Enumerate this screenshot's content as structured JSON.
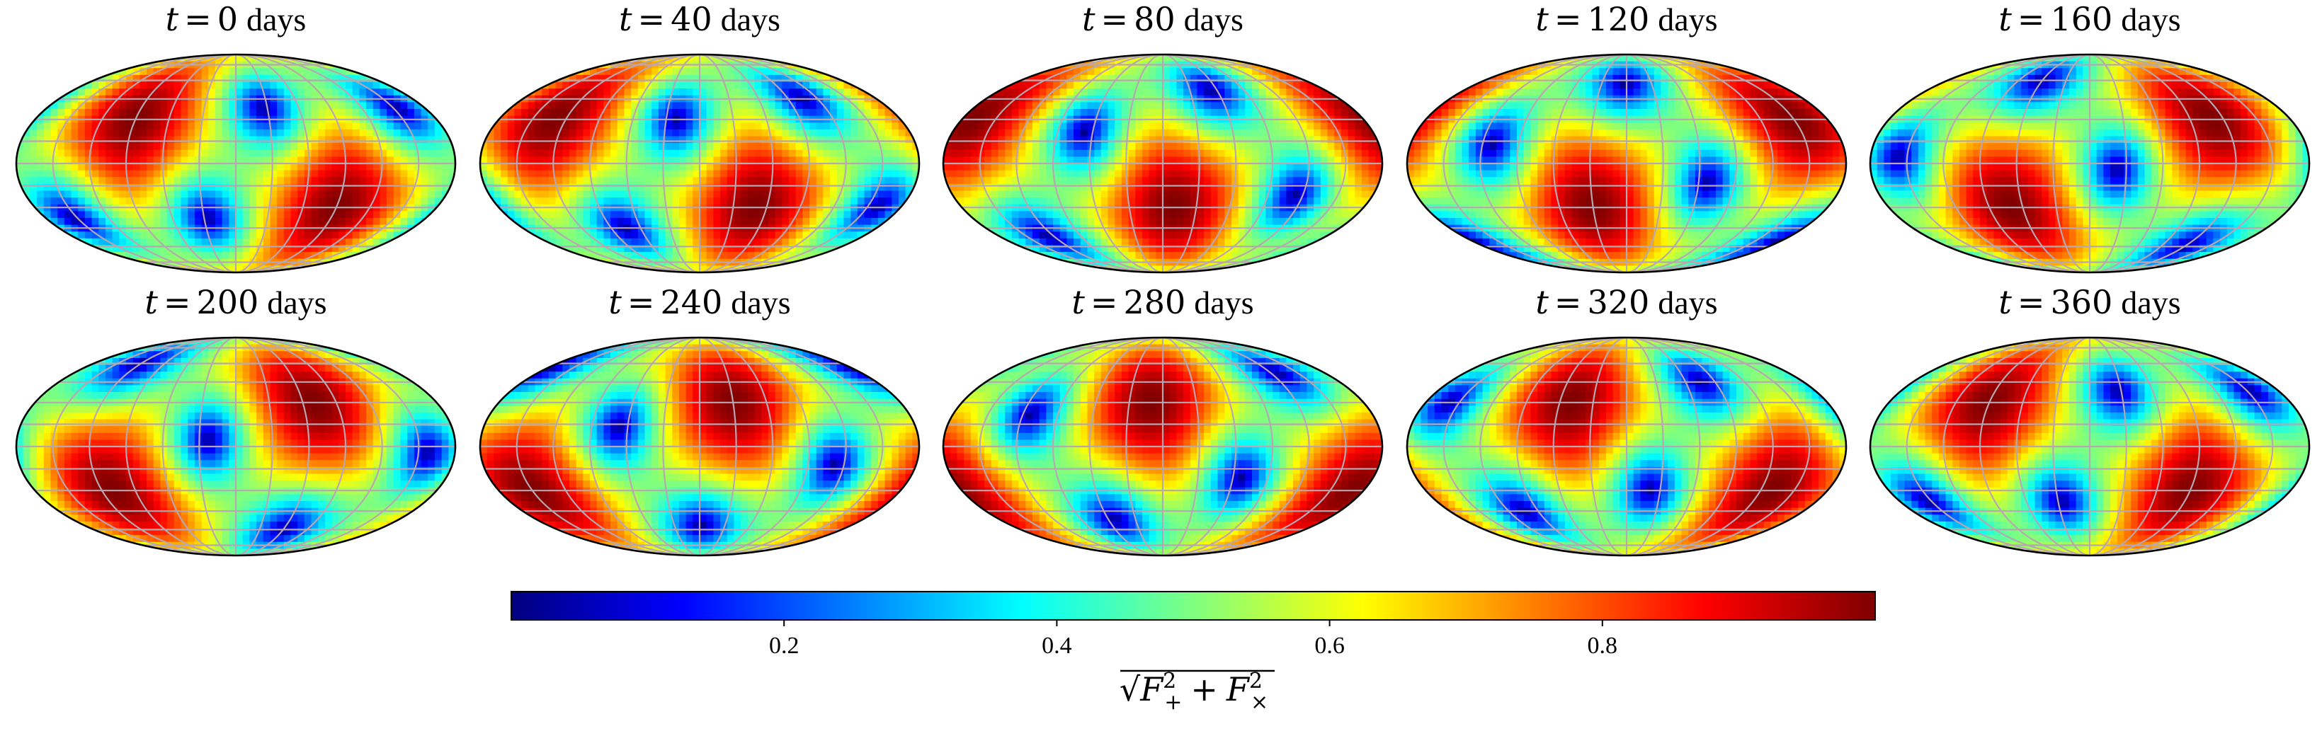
{
  "chart_data": {
    "type": "heatmap",
    "projection": "mollweide",
    "grid": true,
    "panels": [
      {
        "title_var": "t",
        "title_eq": "=",
        "title_value": "0",
        "title_unit": "days",
        "t_days": 0
      },
      {
        "title_var": "t",
        "title_eq": "=",
        "title_value": "40",
        "title_unit": "days",
        "t_days": 40
      },
      {
        "title_var": "t",
        "title_eq": "=",
        "title_value": "80",
        "title_unit": "days",
        "t_days": 80
      },
      {
        "title_var": "t",
        "title_eq": "=",
        "title_value": "120",
        "title_unit": "days",
        "t_days": 120
      },
      {
        "title_var": "t",
        "title_eq": "=",
        "title_value": "160",
        "title_unit": "days",
        "t_days": 160
      },
      {
        "title_var": "t",
        "title_eq": "=",
        "title_value": "200",
        "title_unit": "days",
        "t_days": 200
      },
      {
        "title_var": "t",
        "title_eq": "=",
        "title_value": "240",
        "title_unit": "days",
        "t_days": 240
      },
      {
        "title_var": "t",
        "title_eq": "=",
        "title_value": "280",
        "title_unit": "days",
        "t_days": 280
      },
      {
        "title_var": "t",
        "title_eq": "=",
        "title_value": "320",
        "title_unit": "days",
        "t_days": 320
      },
      {
        "title_var": "t",
        "title_eq": "=",
        "title_value": "360",
        "title_unit": "days",
        "t_days": 360
      }
    ],
    "colorbar": {
      "colormap": "jet",
      "range": [
        0,
        1
      ],
      "ticks": [
        0.2,
        0.4,
        0.6,
        0.8
      ],
      "tick_labels": [
        "0.2",
        "0.4",
        "0.6",
        "0.8"
      ],
      "label_sqrt": "√",
      "label_F": "F",
      "label_sup": "2",
      "label_sub_plus": "+",
      "label_plus": "+",
      "label_sub_cross": "×",
      "orientation": "horizontal",
      "location": "bottom"
    },
    "graticule": {
      "meridian_step_deg": 30,
      "parallel_step_deg": 15
    }
  },
  "colors": {
    "grid": "#b7a7b0",
    "outline": "#000000",
    "colormap_stops": [
      "#00007f",
      "#0000ff",
      "#007fff",
      "#00ffff",
      "#7fff7f",
      "#ffff00",
      "#ff7f00",
      "#ff0000",
      "#7f0000"
    ]
  }
}
